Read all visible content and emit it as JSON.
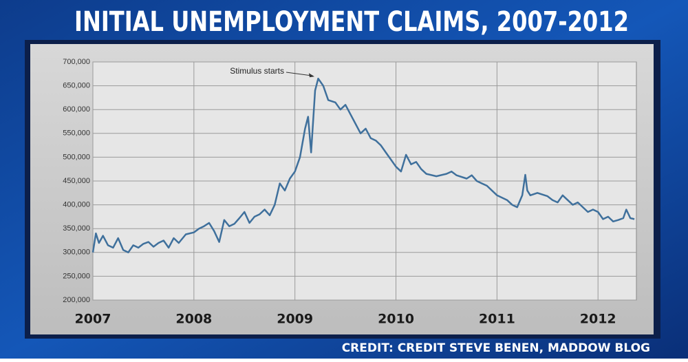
{
  "chart_data": {
    "type": "line",
    "title": "INITIAL UNEMPLOYMENT CLAIMS, 2007-2012",
    "x": [
      2007.0,
      2007.03,
      2007.06,
      2007.1,
      2007.15,
      2007.2,
      2007.25,
      2007.3,
      2007.35,
      2007.4,
      2007.45,
      2007.5,
      2007.55,
      2007.6,
      2007.65,
      2007.7,
      2007.75,
      2007.8,
      2007.85,
      2007.92,
      2008.0,
      2008.05,
      2008.1,
      2008.15,
      2008.2,
      2008.25,
      2008.3,
      2008.35,
      2008.4,
      2008.45,
      2008.5,
      2008.55,
      2008.6,
      2008.65,
      2008.7,
      2008.75,
      2008.8,
      2008.85,
      2008.9,
      2008.95,
      2009.0,
      2009.05,
      2009.1,
      2009.13,
      2009.16,
      2009.2,
      2009.23,
      2009.28,
      2009.33,
      2009.4,
      2009.45,
      2009.5,
      2009.55,
      2009.6,
      2009.65,
      2009.7,
      2009.75,
      2009.8,
      2009.85,
      2009.9,
      2009.95,
      2010.0,
      2010.05,
      2010.1,
      2010.15,
      2010.2,
      2010.25,
      2010.3,
      2010.4,
      2010.5,
      2010.55,
      2010.6,
      2010.7,
      2010.75,
      2010.8,
      2010.85,
      2010.9,
      2010.95,
      2011.0,
      2011.05,
      2011.1,
      2011.15,
      2011.2,
      2011.25,
      2011.28,
      2011.3,
      2011.33,
      2011.4,
      2011.5,
      2011.55,
      2011.6,
      2011.65,
      2011.7,
      2011.75,
      2011.8,
      2011.85,
      2011.9,
      2011.95,
      2012.0,
      2012.05,
      2012.1,
      2012.15,
      2012.2,
      2012.25,
      2012.28,
      2012.32,
      2012.36
    ],
    "series": [
      {
        "name": "Initial claims",
        "color": "#3f709c",
        "values": [
          300000,
          340000,
          320000,
          335000,
          315000,
          310000,
          330000,
          305000,
          300000,
          315000,
          310000,
          318000,
          322000,
          312000,
          320000,
          325000,
          310000,
          330000,
          320000,
          338000,
          342000,
          350000,
          355000,
          362000,
          345000,
          322000,
          368000,
          355000,
          360000,
          372000,
          385000,
          362000,
          375000,
          380000,
          390000,
          378000,
          400000,
          445000,
          430000,
          455000,
          470000,
          500000,
          560000,
          585000,
          510000,
          640000,
          665000,
          650000,
          620000,
          615000,
          600000,
          610000,
          590000,
          570000,
          550000,
          560000,
          540000,
          535000,
          525000,
          510000,
          495000,
          480000,
          470000,
          505000,
          485000,
          490000,
          475000,
          465000,
          460000,
          465000,
          470000,
          462000,
          455000,
          462000,
          450000,
          445000,
          440000,
          430000,
          420000,
          415000,
          410000,
          400000,
          395000,
          420000,
          463000,
          430000,
          420000,
          425000,
          418000,
          410000,
          405000,
          420000,
          410000,
          400000,
          405000,
          395000,
          385000,
          390000,
          385000,
          370000,
          375000,
          365000,
          368000,
          372000,
          390000,
          372000,
          370000
        ]
      }
    ],
    "xlim": [
      2007,
      2012.38
    ],
    "xticks": [
      2007,
      2008,
      2009,
      2010,
      2011,
      2012
    ],
    "ylim": [
      200000,
      700000
    ],
    "yticks": [
      {
        "value": 200000,
        "label": "200,000"
      },
      {
        "value": 250000,
        "label": "250,000"
      },
      {
        "value": 300000,
        "label": "300,000"
      },
      {
        "value": 350000,
        "label": "350,000"
      },
      {
        "value": 400000,
        "label": "400,000"
      },
      {
        "value": 450000,
        "label": "450,000"
      },
      {
        "value": 500000,
        "label": "500,000"
      },
      {
        "value": 550000,
        "label": "550,000"
      },
      {
        "value": 600000,
        "label": "600,000"
      },
      {
        "value": 650000,
        "label": "650,000"
      },
      {
        "value": 700000,
        "label": "700,000"
      }
    ],
    "grid": true,
    "annotations": [
      {
        "text": "Stimulus starts",
        "x": 2009.22,
        "y": 665000
      }
    ]
  },
  "credit": "CREDIT:  CREDIT STEVE BENEN, MADDOW BLOG"
}
